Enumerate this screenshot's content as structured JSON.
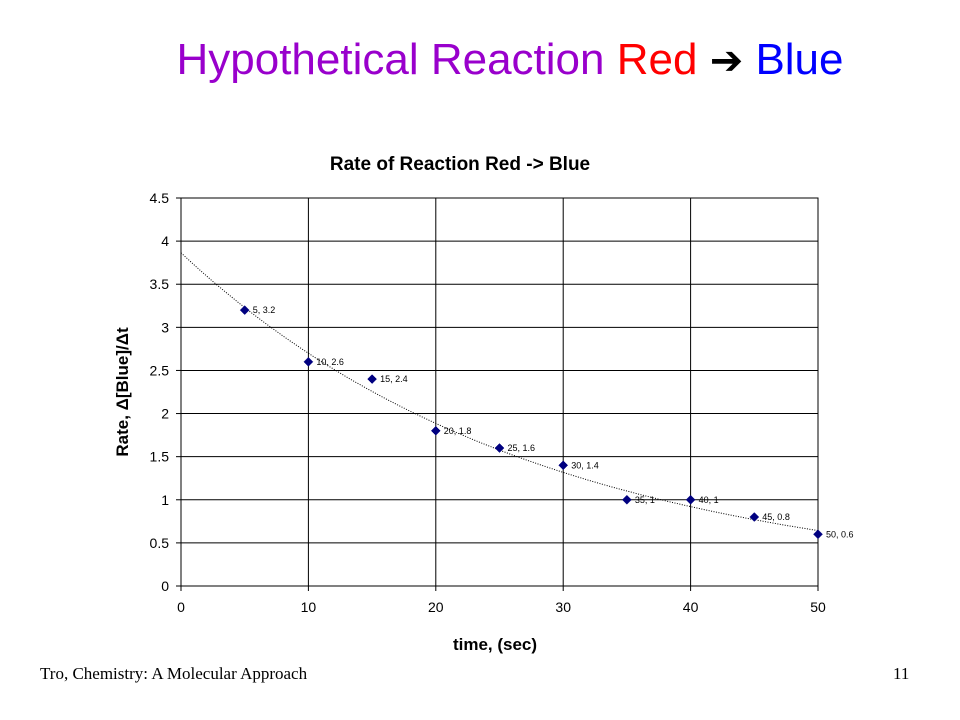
{
  "slide": {
    "title_main": "Hypothetical Reaction",
    "title_red": "Red",
    "title_arrow": "➔",
    "title_blue": "Blue",
    "footer_left": "Tro, Chemistry: A Molecular Approach",
    "page_number": "11"
  },
  "colors": {
    "title_main": "#9900cc",
    "title_red": "#ff0000",
    "title_blue": "#0000ff",
    "marker": "#000080"
  },
  "chart_data": {
    "type": "scatter",
    "title": "Rate of Reaction Red -> Blue",
    "xlabel": "time, (sec)",
    "ylabel": "Rate, Δ[Blue]/Δt",
    "xlim": [
      0,
      50
    ],
    "ylim": [
      0,
      4.5
    ],
    "xticks": [
      "0",
      "10",
      "20",
      "30",
      "40",
      "50"
    ],
    "yticks": [
      "0",
      "0.5",
      "1",
      "1.5",
      "2",
      "2.5",
      "3",
      "3.5",
      "4",
      "4.5"
    ],
    "grid": "vertical and horizontal major gridlines",
    "legend": "none",
    "trendline": "exponential",
    "series": [
      {
        "marker": "diamond",
        "points": [
          {
            "x": 5,
            "y": 3.2,
            "label": "5, 3.2"
          },
          {
            "x": 10,
            "y": 2.6,
            "label": "10, 2.6"
          },
          {
            "x": 15,
            "y": 2.4,
            "label": "15, 2.4"
          },
          {
            "x": 20,
            "y": 1.8,
            "label": "20, 1.8"
          },
          {
            "x": 25,
            "y": 1.6,
            "label": "25, 1.6"
          },
          {
            "x": 30,
            "y": 1.4,
            "label": "30, 1.4"
          },
          {
            "x": 35,
            "y": 1.0,
            "label": "35, 1"
          },
          {
            "x": 40,
            "y": 1.0,
            "label": "40, 1"
          },
          {
            "x": 45,
            "y": 0.8,
            "label": "45, 0.8"
          },
          {
            "x": 50,
            "y": 0.6,
            "label": "50, 0.6"
          }
        ]
      }
    ]
  }
}
